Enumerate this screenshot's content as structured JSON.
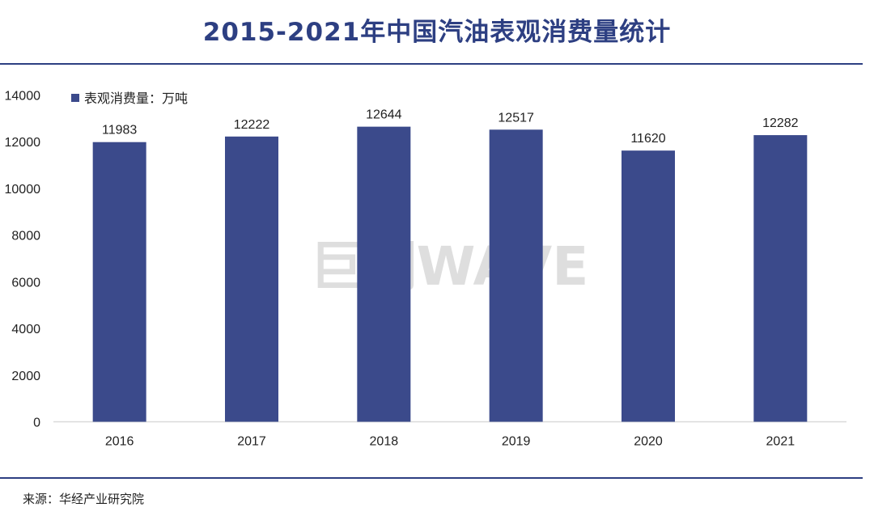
{
  "page": {
    "title": "2015-2021年中国汽油表观消费量统计",
    "source": "来源：华经产业研究院",
    "watermark": "巨潮WAVE"
  },
  "colors": {
    "bar": "#3b4a8b",
    "title": "#2d3f82",
    "rule": "#2d3f82",
    "axis": "#d9d9d9"
  },
  "chart_data": {
    "type": "bar",
    "title": "2015-2021年中国汽油表观消费量统计",
    "xlabel": "",
    "ylabel": "",
    "categories": [
      "2016",
      "2017",
      "2018",
      "2019",
      "2020",
      "2021"
    ],
    "series": [
      {
        "name": "表观消费量：万吨",
        "values": [
          11983,
          12222,
          12644,
          12517,
          11620,
          12282
        ]
      }
    ],
    "ylim": [
      0,
      14000
    ],
    "yticks": [
      0,
      2000,
      4000,
      6000,
      8000,
      10000,
      12000,
      14000
    ],
    "data_labels": [
      "11983",
      "12222",
      "12644",
      "12517",
      "11620",
      "12282"
    ],
    "grid": false,
    "legend": "top-left"
  }
}
